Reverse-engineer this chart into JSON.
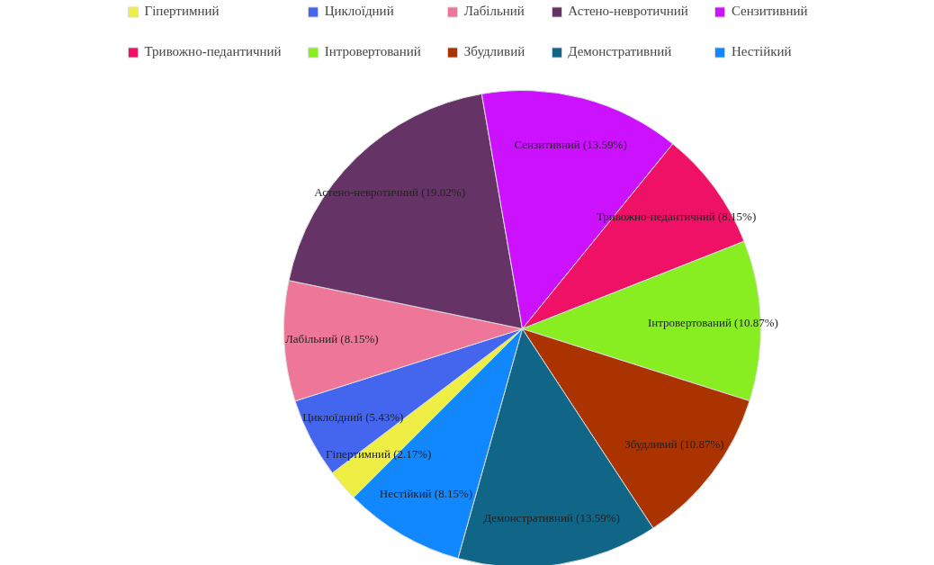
{
  "chart_data": {
    "type": "pie",
    "categories": [
      "Гіпертимний",
      "Циклоїдний",
      "Лабільний",
      "Астено-невротичний",
      "Сензитивний",
      "Тривожно-педантичний",
      "Інтровертований",
      "Збудливий",
      "Демонстративний",
      "Нестійкий"
    ],
    "values": [
      2.17,
      5.43,
      8.15,
      19.02,
      13.59,
      8.15,
      10.87,
      10.87,
      13.59,
      8.15
    ],
    "colors": [
      "#eeee44",
      "#4466ee",
      "#ee7799",
      "#663366",
      "#cc11ff",
      "#ee1166",
      "#88ee22",
      "#aa3300",
      "#116688",
      "#1188ff"
    ],
    "value_labels": [
      "Гіпертимний (2.17%)",
      "Циклоїдний (5.43%)",
      "Лабільний (8.15%)",
      "Астено-невротичний (19.02%)",
      "Сензитивний (13.59%)",
      "Тривожно-педантичний (8.15%)",
      "Інтровертований (10.87%)",
      "Збудливий (10.87%)",
      "Демонстративний (13.59%)",
      "Нестійкий (8.15%)"
    ],
    "legend": "top"
  }
}
